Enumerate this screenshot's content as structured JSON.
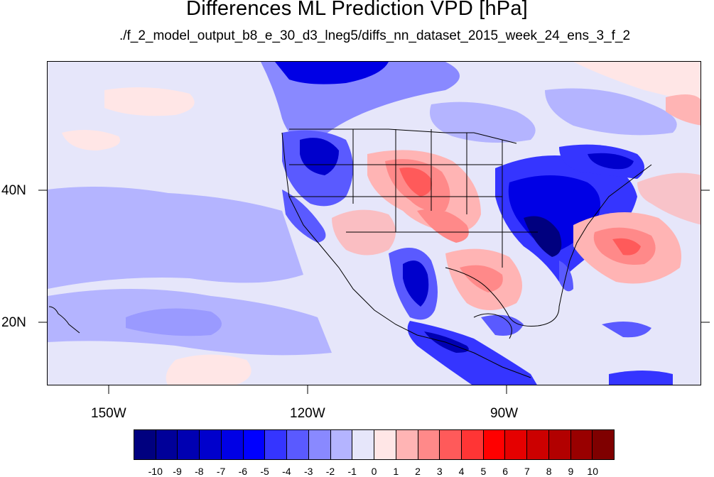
{
  "title": "Differences ML Prediction VPD [hPa]",
  "subtitle": "./f_2_model_output_b8_e_30_d3_lneg5/diffs_nn_dataset_2015_week_24_ens_3_f_2",
  "lon_labels": [
    "150W",
    "120W",
    "90W"
  ],
  "lat_labels": [
    "40N",
    "20N"
  ],
  "colorbar": {
    "labels": [
      "-10",
      "-9",
      "-8",
      "-7",
      "-6",
      "-5",
      "-4",
      "-3",
      "-2",
      "-1",
      "0",
      "1",
      "2",
      "3",
      "4",
      "5",
      "6",
      "7",
      "8",
      "9",
      "10"
    ],
    "colors": [
      "#00007f",
      "#000099",
      "#0000b2",
      "#0000cc",
      "#0000e5",
      "#0000ff",
      "#3535ff",
      "#5a5aff",
      "#8989ff",
      "#b4b4ff",
      "#e6e6fa",
      "#ffe6e6",
      "#ffb4b4",
      "#ff8989",
      "#ff5a5a",
      "#ff3535",
      "#ff0000",
      "#e50000",
      "#cc0000",
      "#b20000",
      "#990000",
      "#7f0000"
    ]
  }
}
